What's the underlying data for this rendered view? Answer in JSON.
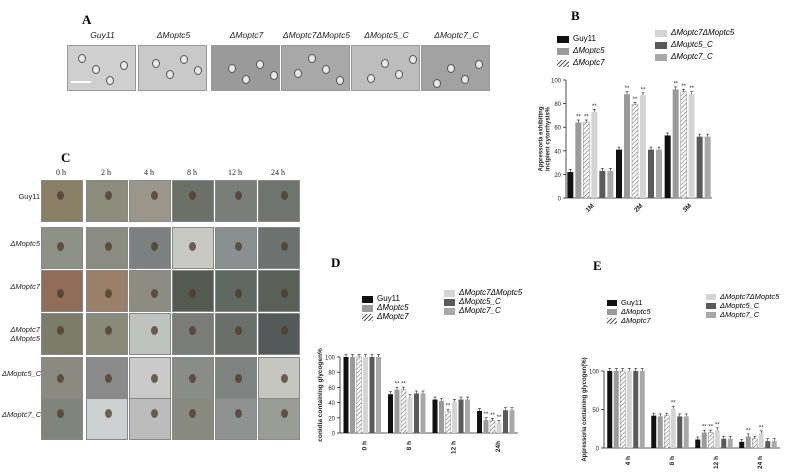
{
  "panel_a": {
    "label": "A",
    "strains": [
      "Guy11",
      "ΔMoptc5",
      "ΔMoptc7",
      "ΔMoptc7ΔMoptc5",
      "ΔMoptc5_C",
      "ΔMoptc7_C"
    ]
  },
  "panel_c": {
    "label": "C",
    "times": [
      "0 h",
      "2 h",
      "4 h",
      "8 h",
      "12 h",
      "24 h"
    ],
    "rows": [
      "Guy11",
      "ΔMoptc5",
      "ΔMoptc7",
      "ΔMoptc7\nΔMoptc5",
      "ΔMoptc5_C",
      "ΔMoptc7_C"
    ]
  },
  "legend": {
    "left": [
      "Guy11",
      "ΔMoptc5",
      "ΔMoptc7"
    ],
    "right": [
      "ΔMoptc7ΔMoptc5",
      "ΔMoptc5_C",
      "ΔMoptc7_C"
    ]
  },
  "colors": {
    "Guy11": "#111111",
    "ΔMoptc5": "#9a9a9a",
    "ΔMoptc7": "#ffffff",
    "ΔMoptc7ΔMoptc5": "#d4d4d4",
    "ΔMoptc5_C": "#5a5a5a",
    "ΔMoptc7_C": "#a8a8a8"
  },
  "chart_data": [
    {
      "panel": "B",
      "type": "bar",
      "ylabel": "Appressoria exhibiting\nincipient cytorrhysis%",
      "ylim": [
        0,
        100
      ],
      "yticks": [
        0,
        20,
        40,
        60,
        80,
        100
      ],
      "categories": [
        "1M",
        "2M",
        "3M"
      ],
      "series": [
        {
          "name": "Guy11",
          "values": [
            22,
            41,
            53
          ]
        },
        {
          "name": "ΔMoptc5",
          "values": [
            64,
            88,
            92
          ]
        },
        {
          "name": "ΔMoptc7",
          "values": [
            64,
            79,
            90
          ]
        },
        {
          "name": "ΔMoptc7ΔMoptc5",
          "values": [
            73,
            87,
            88
          ]
        },
        {
          "name": "ΔMoptc5_C",
          "values": [
            23,
            41,
            52
          ]
        },
        {
          "name": "ΔMoptc7_C",
          "values": [
            23,
            41,
            52
          ]
        }
      ],
      "annotations": [
        "**"
      ]
    },
    {
      "panel": "D",
      "type": "bar",
      "ylabel": "conidia containing glycogen%",
      "ylim": [
        0,
        100
      ],
      "yticks": [
        0,
        20,
        40,
        60,
        80,
        100
      ],
      "categories": [
        "0 h",
        "8 h",
        "12 h",
        "24h"
      ],
      "series": [
        {
          "name": "Guy11",
          "values": [
            100,
            51,
            44,
            29
          ]
        },
        {
          "name": "ΔMoptc5",
          "values": [
            100,
            57,
            42,
            17
          ]
        },
        {
          "name": "ΔMoptc7",
          "values": [
            100,
            57,
            28,
            16
          ]
        },
        {
          "name": "ΔMoptc7ΔMoptc5",
          "values": [
            100,
            47,
            41,
            13
          ]
        },
        {
          "name": "ΔMoptc5_C",
          "values": [
            100,
            52,
            44,
            30
          ]
        },
        {
          "name": "ΔMoptc7_C",
          "values": [
            100,
            52,
            44,
            30
          ]
        }
      ],
      "annotations": [
        "**"
      ]
    },
    {
      "panel": "E",
      "type": "bar",
      "ylabel": "Appressoria containing glycogen(%)",
      "ylim": [
        0,
        100
      ],
      "yticks": [
        0,
        50,
        100
      ],
      "categories": [
        "4 h",
        "8 h",
        "12 h",
        "24 h"
      ],
      "series": [
        {
          "name": "Guy11",
          "values": [
            100,
            42,
            11,
            8
          ]
        },
        {
          "name": "ΔMoptc5",
          "values": [
            100,
            41,
            20,
            15
          ]
        },
        {
          "name": "ΔMoptc7",
          "values": [
            100,
            42,
            20,
            12
          ]
        },
        {
          "name": "ΔMoptc7ΔMoptc5",
          "values": [
            100,
            51,
            23,
            19
          ]
        },
        {
          "name": "ΔMoptc5_C",
          "values": [
            100,
            41,
            12,
            9
          ]
        },
        {
          "name": "ΔMoptc7_C",
          "values": [
            100,
            41,
            12,
            9
          ]
        }
      ],
      "annotations": [
        "**"
      ]
    }
  ]
}
